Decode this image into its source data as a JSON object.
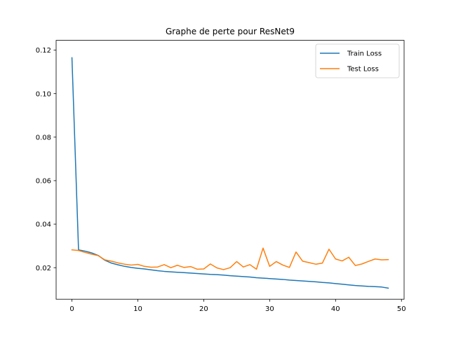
{
  "chart_data": {
    "type": "line",
    "title": "Graphe de perte pour ResNet9",
    "xlabel": "",
    "ylabel": "",
    "xlim": [
      -2.4,
      50.4
    ],
    "ylim": [
      0.0055,
      0.1245
    ],
    "xticks": [
      0,
      10,
      20,
      30,
      40,
      50
    ],
    "yticks": [
      0.02,
      0.04,
      0.06,
      0.08,
      0.1,
      0.12
    ],
    "ytick_labels": [
      "0.02",
      "0.04",
      "0.06",
      "0.08",
      "0.10",
      "0.12"
    ],
    "grid": false,
    "legend_position": "top-right",
    "x": [
      0,
      1,
      2,
      3,
      4,
      5,
      6,
      7,
      8,
      9,
      10,
      11,
      12,
      13,
      14,
      15,
      16,
      17,
      18,
      19,
      20,
      21,
      22,
      23,
      24,
      25,
      26,
      27,
      28,
      29,
      30,
      31,
      32,
      33,
      34,
      35,
      36,
      37,
      38,
      39,
      40,
      41,
      42,
      43,
      44,
      45,
      46,
      47,
      48
    ],
    "series": [
      {
        "name": "Train Loss",
        "color": "#1f77b4",
        "values": [
          0.1165,
          0.0282,
          0.0276,
          0.0268,
          0.0256,
          0.0234,
          0.0221,
          0.0213,
          0.0206,
          0.0201,
          0.0197,
          0.0194,
          0.019,
          0.0186,
          0.0183,
          0.0181,
          0.0179,
          0.0177,
          0.0175,
          0.0173,
          0.0171,
          0.0169,
          0.0168,
          0.0166,
          0.0163,
          0.0161,
          0.0159,
          0.0157,
          0.0154,
          0.0152,
          0.015,
          0.0148,
          0.0146,
          0.0143,
          0.0141,
          0.0139,
          0.0137,
          0.0135,
          0.0132,
          0.013,
          0.0127,
          0.0124,
          0.0121,
          0.0118,
          0.0116,
          0.0114,
          0.0113,
          0.0111,
          0.0106
        ]
      },
      {
        "name": "Test Loss",
        "color": "#ff7f0e",
        "values": [
          0.0282,
          0.0279,
          0.027,
          0.0262,
          0.0255,
          0.0236,
          0.023,
          0.0222,
          0.0216,
          0.0212,
          0.0215,
          0.0206,
          0.0202,
          0.0203,
          0.0214,
          0.02,
          0.0211,
          0.0201,
          0.0205,
          0.0193,
          0.0194,
          0.0217,
          0.0199,
          0.0191,
          0.02,
          0.0228,
          0.0203,
          0.0214,
          0.0193,
          0.029,
          0.0206,
          0.0228,
          0.0212,
          0.0201,
          0.0272,
          0.023,
          0.0223,
          0.0216,
          0.0221,
          0.0285,
          0.024,
          0.0231,
          0.0248,
          0.021,
          0.0217,
          0.0229,
          0.024,
          0.0236,
          0.0237
        ]
      }
    ]
  }
}
